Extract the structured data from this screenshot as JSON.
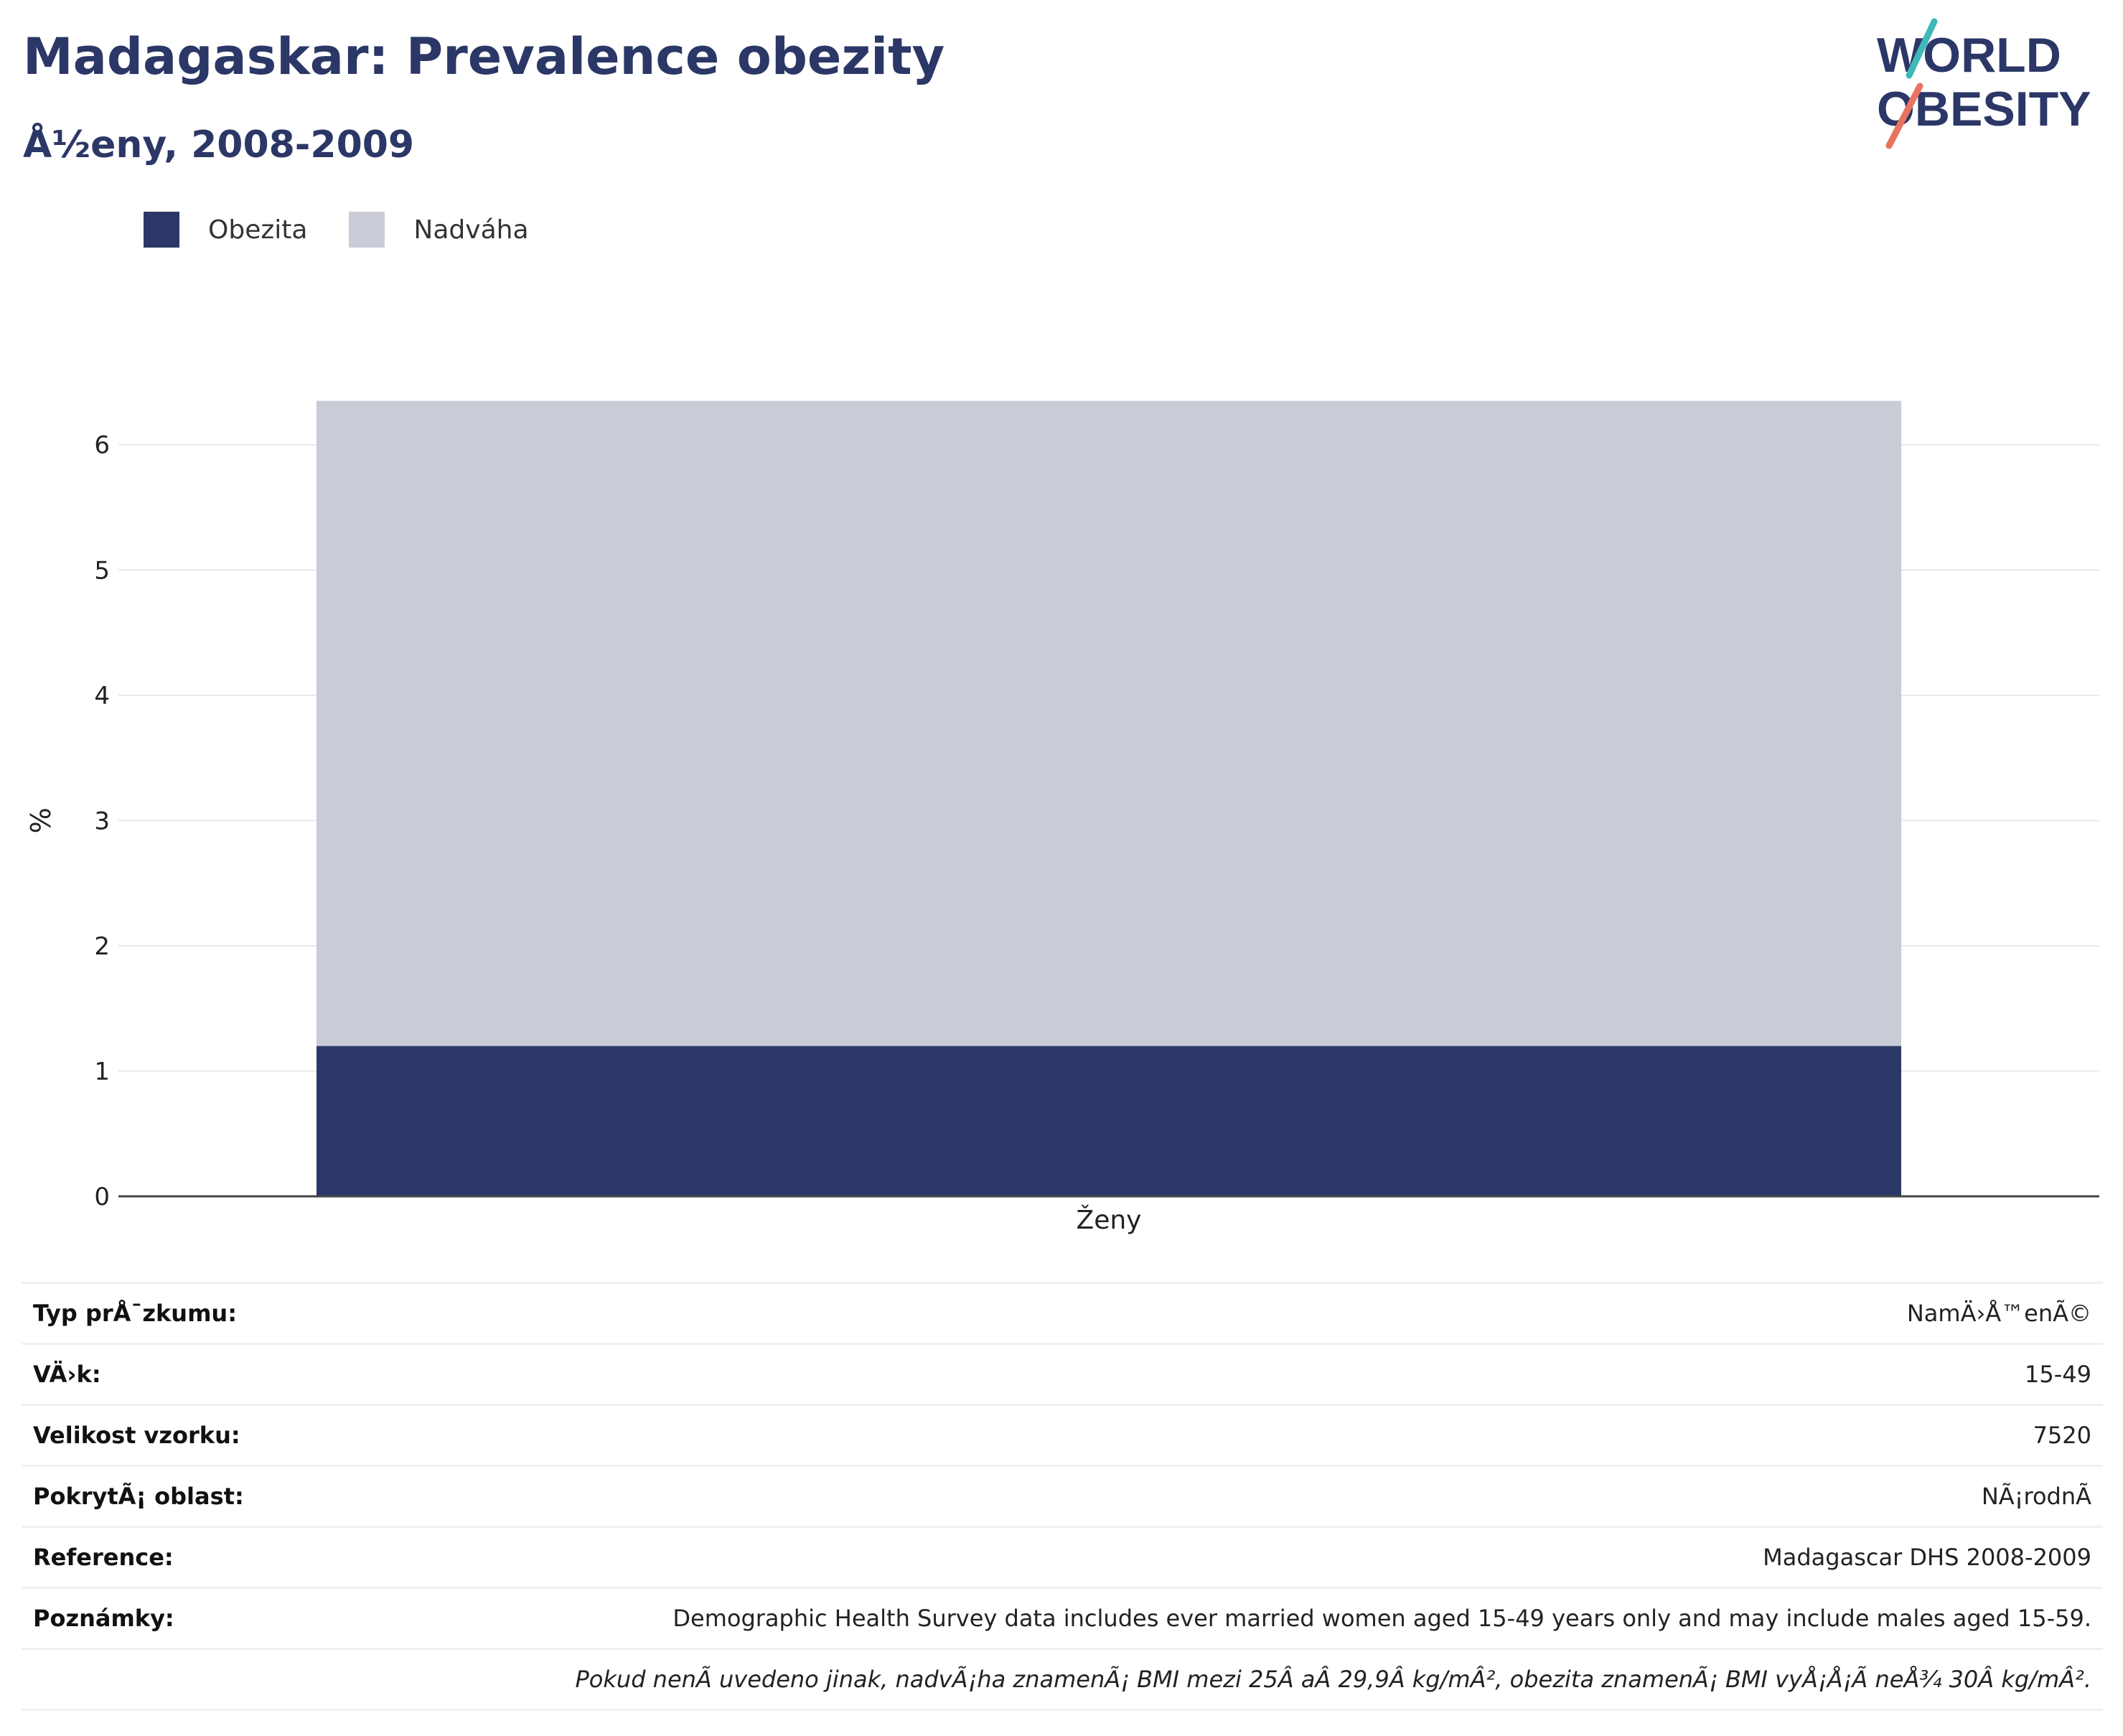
{
  "header": {
    "title": "Madagaskar: Prevalence obezity",
    "subtitle": "Å½eny, 2008-2009"
  },
  "logo": {
    "line1": "WORLD",
    "line2": "OBESITY",
    "name": "world-obesity-logo"
  },
  "legend": [
    {
      "label": "Obezita",
      "color": "#2b3766"
    },
    {
      "label": "Nadváha",
      "color": "#c9ccd7"
    }
  ],
  "chart_data": {
    "type": "bar",
    "stacked": true,
    "categories": [
      "Ženy"
    ],
    "series": [
      {
        "name": "Obezita",
        "values": [
          1.2
        ],
        "color": "#2b3766"
      },
      {
        "name": "Nadváha",
        "values": [
          5.15
        ],
        "color": "#c9ccd7"
      }
    ],
    "ylabel": "%",
    "xlabel": "",
    "ylim": [
      0,
      6.6
    ],
    "yticks": [
      0,
      1,
      2,
      3,
      4,
      5,
      6
    ],
    "grid": true
  },
  "info_table": [
    {
      "key": "Typ prÅ¯zkumu:",
      "value": "NamÄ›Å™enÃ©"
    },
    {
      "key": "VÄ›k:",
      "value": "15-49"
    },
    {
      "key": "Velikost vzorku:",
      "value": "7520"
    },
    {
      "key": "PokrytÃ¡ oblast:",
      "value": "NÃ¡rodnÃ"
    },
    {
      "key": "Reference:",
      "value": "Madagascar DHS 2008-2009"
    },
    {
      "key": "Poznámky:",
      "value": "Demographic Health Survey data includes ever married women aged 15-49 years only and may include males aged 15-59."
    }
  ],
  "footnote": "Pokud nenÃ uvedeno jinak, nadvÃ¡ha znamenÃ¡ BMI mezi 25Â aÂ 29,9Â kg/mÂ², obezita znamenÃ¡ BMI vyÅ¡Å¡Ã neÅ¾ 30Â kg/mÂ²."
}
